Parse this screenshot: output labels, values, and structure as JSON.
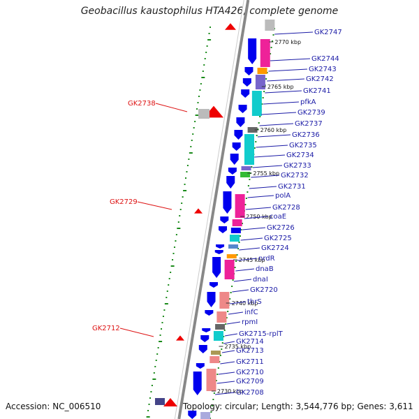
{
  "title": "Geobacillus kaustophilus HTA426, complete genome",
  "accession": "Accession: NC_006510",
  "topology": "Topology: circular; Length: 3,544,776 bp; Genes: 3,611",
  "colors": {
    "backbone": "#888888",
    "forward_gene": "#0000ee",
    "reverse_gene": "#ee0000",
    "label_blue": "#1a1aa6",
    "label_red": "#dd1111",
    "dots": "#1a8a1a",
    "magenta": "#ee2299",
    "cyan": "#11cccc",
    "purple": "#7766cc",
    "orange": "#ff9900",
    "pink": "#ee8888",
    "gray": "#bbbbbb"
  },
  "kbp_ticks": [
    "2770 kbp",
    "2765 kbp",
    "2760 kbp",
    "2755 kbp",
    "2750 kbp",
    "2745 kbp",
    "2740 kbp",
    "2735 kbp",
    "2730 kbp"
  ],
  "right_labels": [
    "GK2747",
    "GK2744",
    "GK2743",
    "GK2742",
    "GK2741",
    "pfkA",
    "GK2739",
    "GK2737",
    "GK2736",
    "GK2735",
    "GK2734",
    "GK2733",
    "GK2732",
    "GK2731",
    "polA",
    "GK2728",
    "coaE",
    "GK2726",
    "GK2725",
    "GK2724",
    "nrdR",
    "dnaB",
    "dnaI",
    "GK2720",
    "thrS",
    "infC",
    "rpmI",
    "GK2715-rplT",
    "GK2714",
    "GK2713",
    "GK2711",
    "GK2710",
    "GK2709",
    "GK2708"
  ],
  "left_labels": [
    "GK2738",
    "GK2729",
    "GK2712"
  ]
}
